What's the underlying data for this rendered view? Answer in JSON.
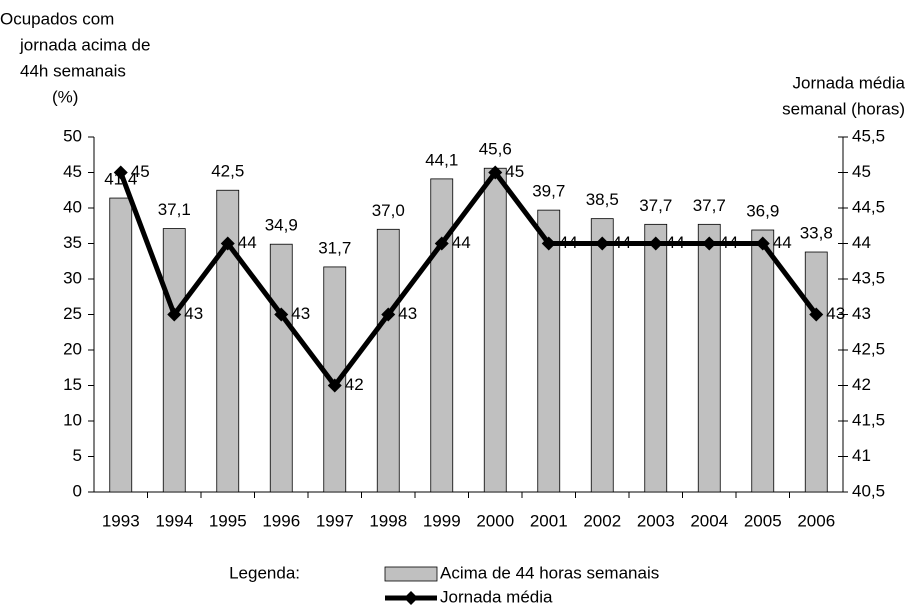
{
  "chart_data": {
    "type": "bar_line",
    "y_label": [
      "Ocupados com",
      "jornada acima de",
      "44h semanais",
      "(%)"
    ],
    "y2_label": [
      "Jornada média",
      "semanal (horas)"
    ],
    "legend_title": "Legenda:",
    "categories": [
      "1993",
      "1994",
      "1995",
      "1996",
      "1997",
      "1998",
      "1999",
      "2000",
      "2001",
      "2002",
      "2003",
      "2004",
      "2005",
      "2006"
    ],
    "series": [
      {
        "name": "Acima de 44 horas semanais",
        "type": "bar",
        "color": "#c0c0c0",
        "values": [
          41.4,
          37.1,
          42.5,
          34.9,
          31.7,
          37.0,
          44.1,
          45.6,
          39.7,
          38.5,
          37.7,
          37.7,
          36.9,
          33.8
        ],
        "value_labels": [
          "41,4",
          "37,1",
          "42,5",
          "34,9",
          "31,7",
          "37,0",
          "44,1",
          "45,6",
          "39,7",
          "38,5",
          "37,7",
          "37,7",
          "36,9",
          "33,8"
        ]
      },
      {
        "name": "Jornada média",
        "type": "line",
        "axis": "y2",
        "color": "#000000",
        "values": [
          45,
          43,
          44,
          43,
          42,
          43,
          44,
          45,
          44,
          44,
          44,
          44,
          44,
          43
        ]
      }
    ],
    "ylim": [
      0,
      50
    ],
    "yticks": [
      0,
      5,
      10,
      15,
      20,
      25,
      30,
      35,
      40,
      45,
      50
    ],
    "y2lim": [
      40.5,
      45.5
    ],
    "y2ticks": [
      {
        "value": 40.5,
        "label": "40,5"
      },
      41,
      {
        "value": 41.5,
        "label": "41,5"
      },
      42,
      {
        "value": 42.5,
        "label": "42,5"
      },
      43,
      {
        "value": 43.5,
        "label": "43,5"
      },
      44,
      {
        "value": 44.5,
        "label": "44,5"
      },
      45,
      {
        "value": 45.5,
        "label": "45,5"
      }
    ],
    "grid": false
  }
}
